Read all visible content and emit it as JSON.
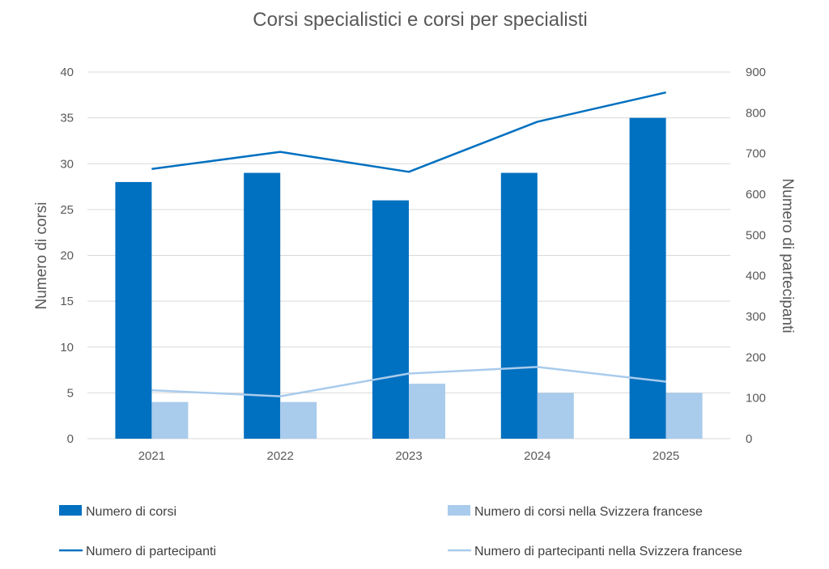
{
  "chart_data": {
    "type": "bar",
    "title": "Corsi specialistici e corsi per specialisti",
    "categories": [
      "2021",
      "2022",
      "2023",
      "2024",
      "2025"
    ],
    "y_left": {
      "label": "Numero di corsi",
      "lim": [
        0,
        40
      ],
      "ticks": [
        0,
        5,
        10,
        15,
        20,
        25,
        30,
        35,
        40
      ]
    },
    "y_right": {
      "label": "Numero di partecipanti",
      "lim": [
        0,
        900
      ],
      "ticks": [
        0,
        100,
        200,
        300,
        400,
        500,
        600,
        700,
        800,
        900
      ]
    },
    "grid": true,
    "legend_position": "bottom",
    "series": [
      {
        "name": "Numero di corsi",
        "kind": "bar",
        "axis": "left",
        "color": "#0070c0",
        "values": [
          28,
          29,
          26,
          29,
          35
        ]
      },
      {
        "name": "Numero di corsi nella Svizzera francese",
        "kind": "bar",
        "axis": "left",
        "color": "#a9cbec",
        "values": [
          4,
          4,
          6,
          5,
          5
        ]
      },
      {
        "name": "Numero di partecipanti",
        "kind": "line",
        "axis": "right",
        "color": "#0070c0",
        "values": [
          662,
          704,
          655,
          778,
          850
        ]
      },
      {
        "name": "Numero di partecipanti nella Svizzera francese",
        "kind": "line",
        "axis": "right",
        "color": "#a9cbec",
        "values": [
          119,
          104,
          160,
          176,
          140
        ]
      }
    ]
  }
}
